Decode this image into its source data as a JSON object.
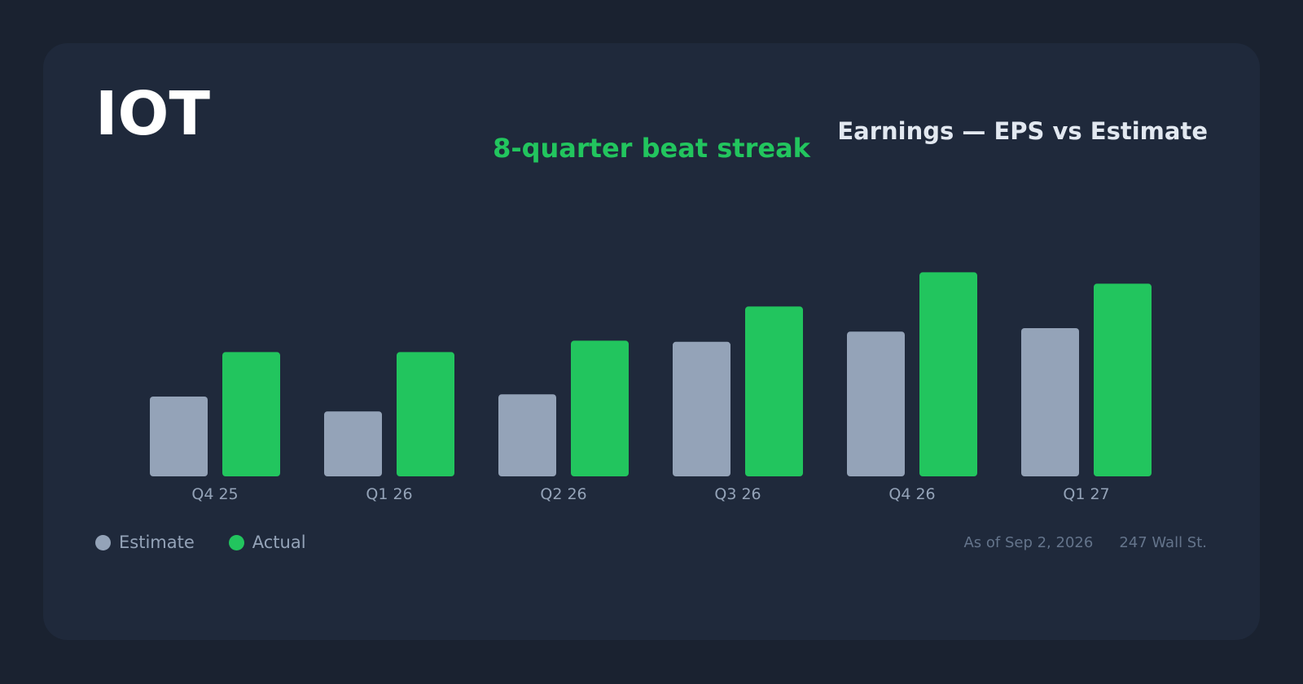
{
  "header": {
    "ticker": "IOT",
    "title": "Earnings — EPS vs Estimate",
    "subtitle": "8-quarter beat streak"
  },
  "footer": {
    "as_of": "As of Sep 2, 2026",
    "source": "247 Wall St."
  },
  "colors": {
    "estimate": "#94a3b8",
    "actual": "#22c55e",
    "subtitle": "#22c55e"
  },
  "chart_data": {
    "type": "bar",
    "title": "Earnings — EPS vs Estimate",
    "subtitle": "8-quarter beat streak",
    "categories": [
      "Q4 25",
      "Q1 26",
      "Q2 26",
      "Q3 26",
      "Q4 26",
      "Q1 27"
    ],
    "series": [
      {
        "name": "Estimate",
        "values": [
          0.07,
          0.057,
          0.072,
          0.118,
          0.127,
          0.13
        ]
      },
      {
        "name": "Actual",
        "values": [
          0.109,
          0.109,
          0.119,
          0.149,
          0.179,
          0.169
        ]
      }
    ],
    "ylim": [
      0,
      0.2
    ],
    "grid": false,
    "legend": "bottom-left"
  }
}
